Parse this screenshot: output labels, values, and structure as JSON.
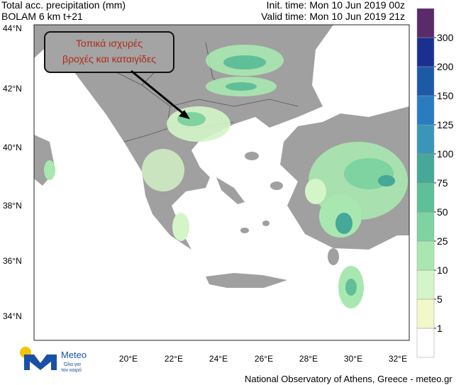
{
  "header": {
    "title": "Total acc. precipitation (mm)",
    "model": "BOLAM 6 km t+21",
    "init_time": "Init. time: Mon 10 Jun 2019 00z",
    "valid_time": "Valid time: Mon 10 Jun 2019 21z"
  },
  "annotation": {
    "line1": "Τοπικά ισχυρές",
    "line2": "βροχές και καταιγίδες"
  },
  "lat_labels": [
    "44°N",
    "42°N",
    "40°N",
    "38°N",
    "36°N",
    "34°N"
  ],
  "lon_labels": [
    "20°E",
    "22°E",
    "24°E",
    "26°E",
    "28°E",
    "30°E",
    "32°E"
  ],
  "colorbar": {
    "levels": [
      1,
      5,
      10,
      25,
      50,
      75,
      100,
      125,
      150,
      200,
      300
    ],
    "colors": [
      "#ffffff",
      "#f2f8c8",
      "#d4f5c8",
      "#a8e8b0",
      "#7fd3a0",
      "#5fbf98",
      "#45a898",
      "#3a96b8",
      "#2a7cc0",
      "#1c5aa8",
      "#1a3090",
      "#5a2a6a"
    ]
  },
  "logo": {
    "name": "Meteo",
    "tagline1": "Όλα για",
    "tagline2": "τον καιρό"
  },
  "footer": "National Observatory of Athens, Greece - meteo.gr"
}
